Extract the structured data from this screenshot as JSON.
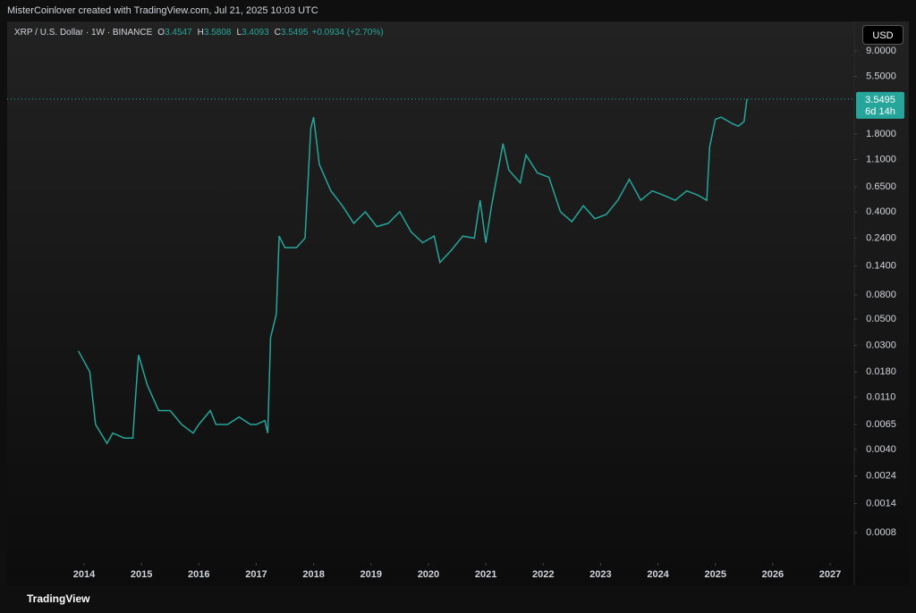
{
  "header": {
    "credit": "MisterCoinlover created with TradingView.com, Jul 21, 2025 10:03 UTC",
    "symbol": "XRP / U.S. Dollar · 1W · BINANCE",
    "ohlc": [
      {
        "key": "O",
        "value": 3.4547
      },
      {
        "key": "H",
        "value": 3.5808
      },
      {
        "key": "L",
        "value": 3.4093
      },
      {
        "key": "C",
        "value": 3.5495
      }
    ],
    "change": "+0.0934 (+2.70%)",
    "currency": "USD",
    "footer": "TradingView"
  },
  "chart_data": {
    "type": "line",
    "log_scale": true,
    "grid": false,
    "color": "#26a69a",
    "last_price": 3.5495,
    "countdown": "6d 14h",
    "xlim": [
      2012.66,
      2027.42
    ],
    "xticks": [
      2014,
      2015,
      2016,
      2017,
      2018,
      2019,
      2020,
      2021,
      2022,
      2023,
      2024,
      2025,
      2026,
      2027
    ],
    "ylim": [
      0.00046,
      15.7
    ],
    "yticks": [
      {
        "value": 9,
        "label": "9.0000"
      },
      {
        "value": 5.5,
        "label": "5.5000"
      },
      {
        "value": 1.8,
        "label": "1.8000"
      },
      {
        "value": 1.1,
        "label": "1.1000"
      },
      {
        "value": 0.65,
        "label": "0.6500"
      },
      {
        "value": 0.4,
        "label": "0.4000"
      },
      {
        "value": 0.24,
        "label": "0.2400"
      },
      {
        "value": 0.14,
        "label": "0.1400"
      },
      {
        "value": 0.08,
        "label": "0.0800"
      },
      {
        "value": 0.05,
        "label": "0.0500"
      },
      {
        "value": 0.03,
        "label": "0.0300"
      },
      {
        "value": 0.018,
        "label": "0.0180"
      },
      {
        "value": 0.011,
        "label": "0.0110"
      },
      {
        "value": 0.0065,
        "label": "0.0065"
      },
      {
        "value": 0.004,
        "label": "0.0040"
      },
      {
        "value": 0.0024,
        "label": "0.0024"
      },
      {
        "value": 0.0014,
        "label": "0.0014"
      },
      {
        "value": 0.0008,
        "label": "0.0008"
      }
    ],
    "x": [
      2013.9,
      2014.1,
      2014.2,
      2014.4,
      2014.5,
      2014.7,
      2014.85,
      2014.9,
      2014.95,
      2015.1,
      2015.3,
      2015.5,
      2015.7,
      2015.9,
      2016.0,
      2016.2,
      2016.3,
      2016.5,
      2016.7,
      2016.9,
      2017.0,
      2017.15,
      2017.2,
      2017.25,
      2017.35,
      2017.4,
      2017.5,
      2017.6,
      2017.7,
      2017.85,
      2017.95,
      2018.0,
      2018.1,
      2018.3,
      2018.5,
      2018.7,
      2018.9,
      2019.1,
      2019.3,
      2019.5,
      2019.7,
      2019.9,
      2020.1,
      2020.2,
      2020.4,
      2020.6,
      2020.8,
      2020.9,
      2021.0,
      2021.1,
      2021.3,
      2021.4,
      2021.6,
      2021.7,
      2021.9,
      2022.1,
      2022.3,
      2022.5,
      2022.7,
      2022.9,
      2023.1,
      2023.3,
      2023.5,
      2023.7,
      2023.9,
      2024.1,
      2024.3,
      2024.5,
      2024.7,
      2024.85,
      2024.9,
      2025.0,
      2025.1,
      2025.3,
      2025.4,
      2025.5,
      2025.55
    ],
    "values": [
      0.027,
      0.018,
      0.0065,
      0.0045,
      0.0055,
      0.005,
      0.005,
      0.0115,
      0.025,
      0.014,
      0.0085,
      0.0085,
      0.0065,
      0.0055,
      0.0065,
      0.0085,
      0.0065,
      0.0065,
      0.0075,
      0.0065,
      0.0065,
      0.007,
      0.0055,
      0.035,
      0.055,
      0.25,
      0.2,
      0.2,
      0.2,
      0.24,
      2.0,
      2.5,
      1.0,
      0.6,
      0.45,
      0.32,
      0.4,
      0.3,
      0.32,
      0.4,
      0.27,
      0.22,
      0.25,
      0.15,
      0.19,
      0.25,
      0.24,
      0.5,
      0.22,
      0.45,
      1.5,
      0.9,
      0.7,
      1.2,
      0.85,
      0.78,
      0.4,
      0.33,
      0.45,
      0.35,
      0.38,
      0.5,
      0.75,
      0.5,
      0.6,
      0.55,
      0.5,
      0.6,
      0.55,
      0.5,
      1.4,
      2.4,
      2.5,
      2.2,
      2.1,
      2.3,
      3.5495
    ]
  }
}
